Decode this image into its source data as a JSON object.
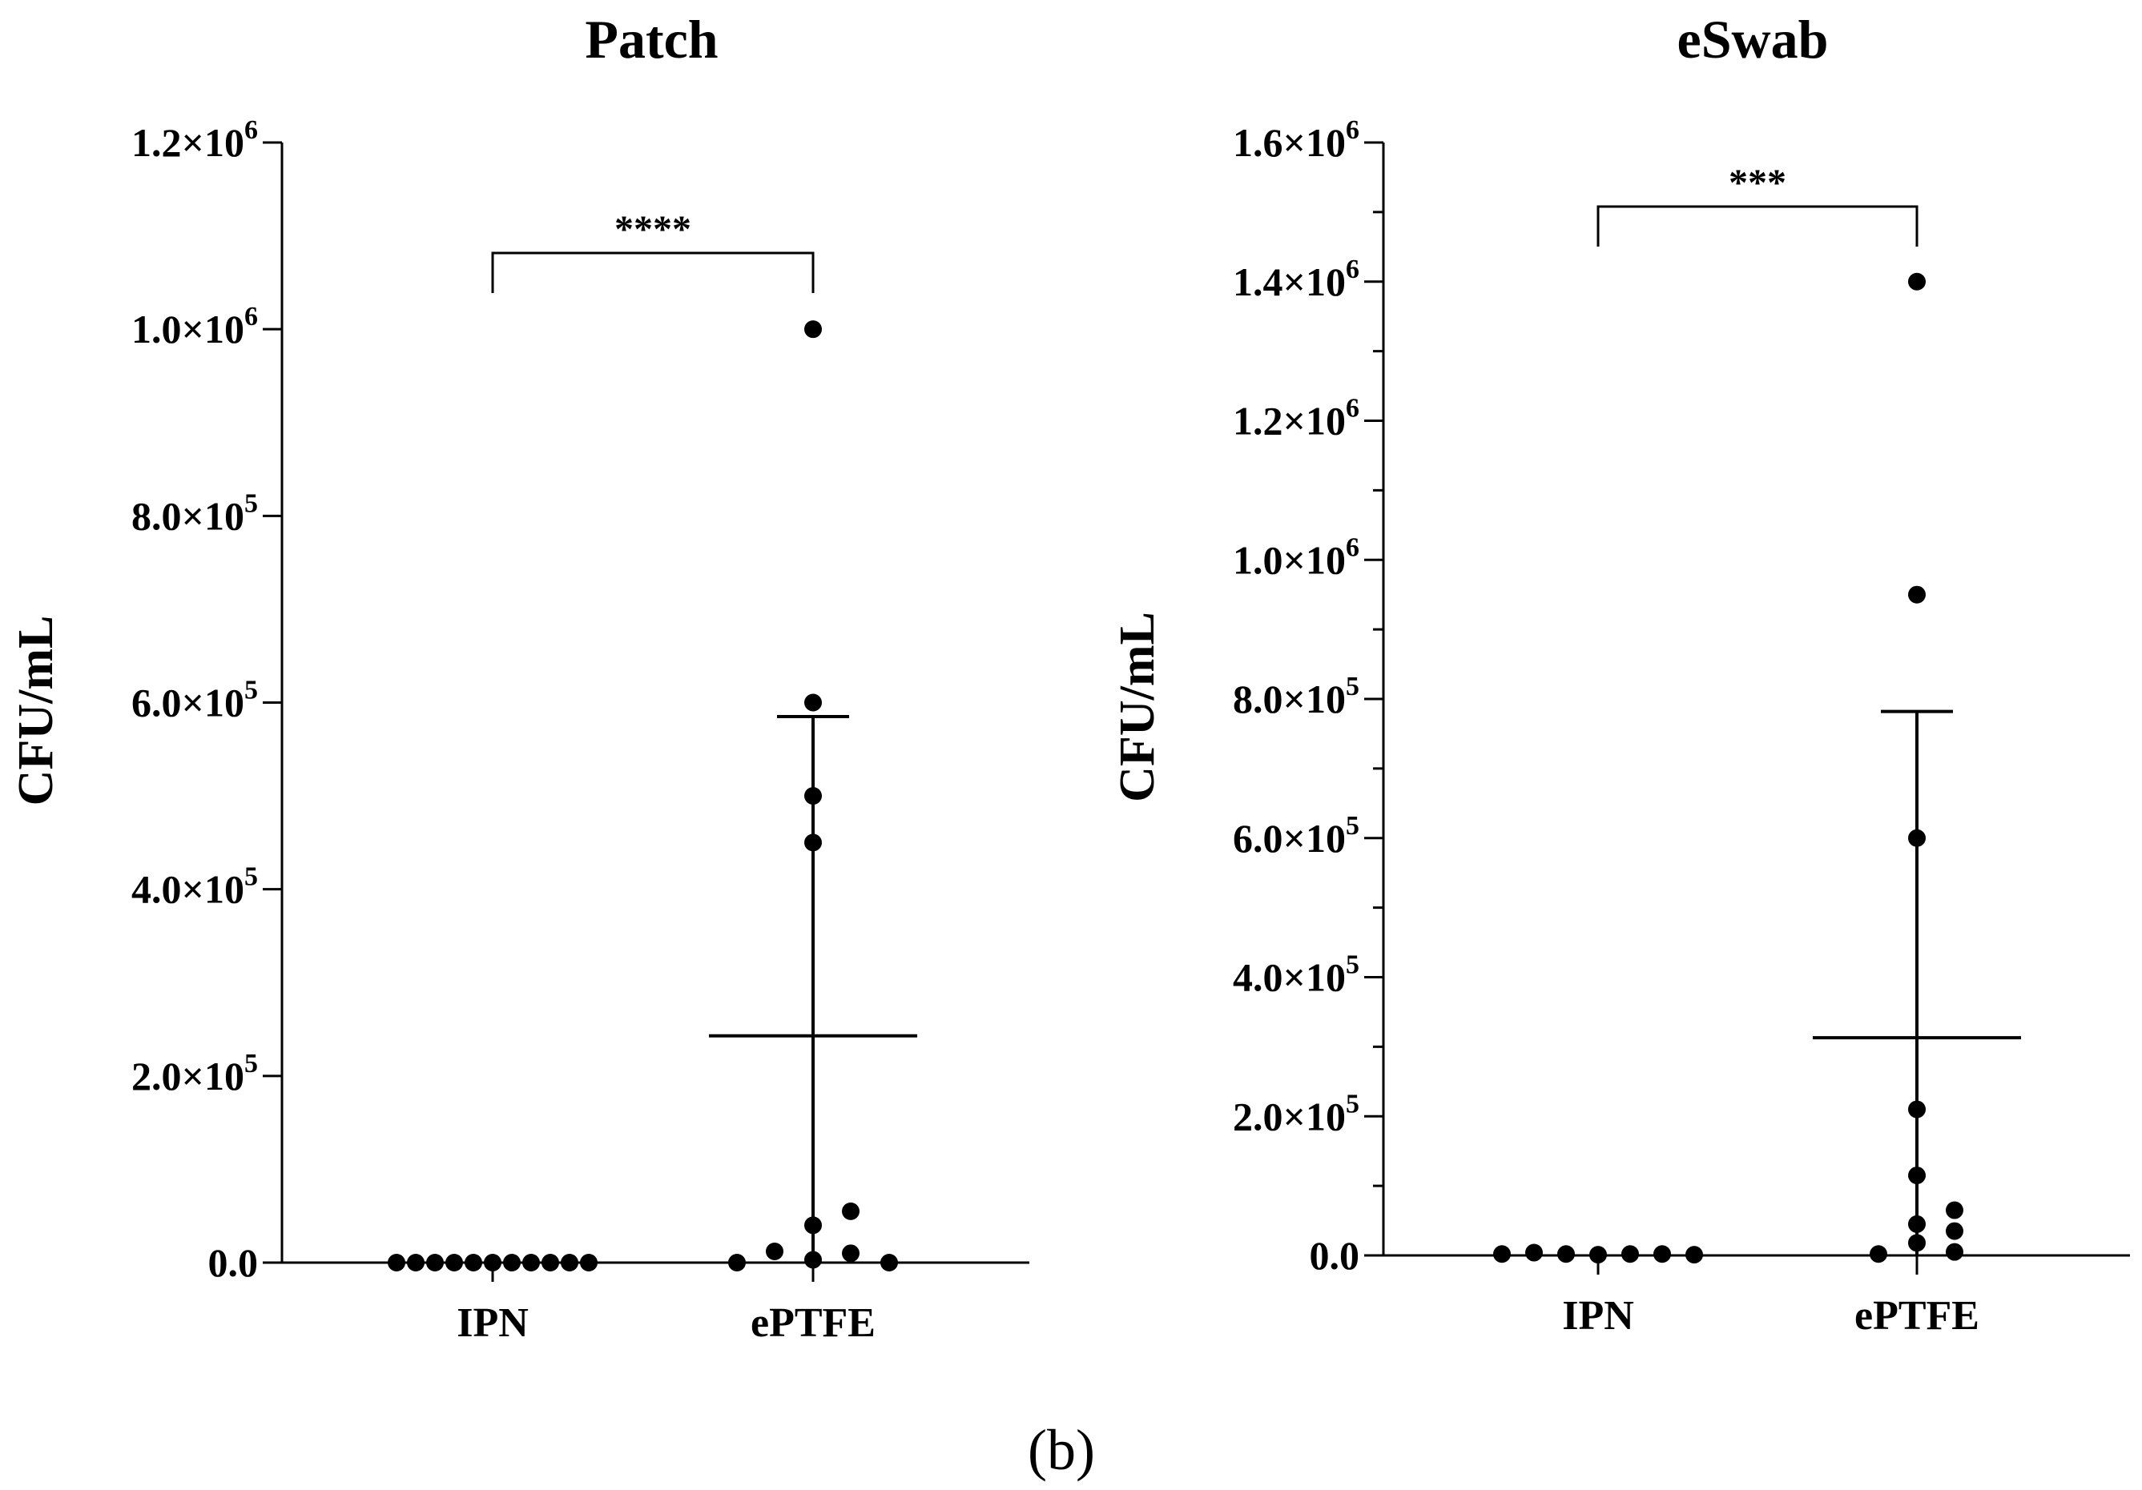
{
  "caption": "(b)",
  "chart_data": [
    {
      "type": "scatter",
      "title": "Patch",
      "ylabel": "CFU/mL",
      "xlabel": "",
      "categories": [
        "IPN",
        "ePTFE"
      ],
      "ylim": [
        0,
        1200000
      ],
      "yticks": [
        {
          "value": 0,
          "label": "0.0"
        },
        {
          "value": 200000,
          "mant": "2.0×10",
          "exp": "5"
        },
        {
          "value": 400000,
          "mant": "4.0×10",
          "exp": "5"
        },
        {
          "value": 600000,
          "mant": "6.0×10",
          "exp": "5"
        },
        {
          "value": 800000,
          "mant": "8.0×10",
          "exp": "5"
        },
        {
          "value": 1000000,
          "mant": "1.0×10",
          "exp": "6"
        },
        {
          "value": 1200000,
          "mant": "1.2×10",
          "exp": "6"
        }
      ],
      "minor_ticks": [],
      "series": [
        {
          "category": "IPN",
          "values": [
            0,
            0,
            0,
            0,
            0,
            0,
            0,
            0,
            0,
            0,
            0
          ]
        },
        {
          "category": "ePTFE",
          "values": [
            1000000,
            600000,
            500000,
            450000,
            40000,
            3000,
            0,
            12000,
            55000,
            10000,
            0
          ],
          "mean": 243000,
          "sd_upper": 585000
        }
      ],
      "significance": {
        "label": "****",
        "between": [
          "IPN",
          "ePTFE"
        ]
      },
      "grid": false
    },
    {
      "type": "scatter",
      "title": "eSwab",
      "ylabel": "CFU/mL",
      "xlabel": "",
      "categories": [
        "IPN",
        "ePTFE"
      ],
      "ylim": [
        0,
        1600000
      ],
      "yticks": [
        {
          "value": 0,
          "label": "0.0"
        },
        {
          "value": 200000,
          "mant": "2.0×10",
          "exp": "5"
        },
        {
          "value": 400000,
          "mant": "4.0×10",
          "exp": "5"
        },
        {
          "value": 600000,
          "mant": "6.0×10",
          "exp": "5"
        },
        {
          "value": 800000,
          "mant": "8.0×10",
          "exp": "5"
        },
        {
          "value": 1000000,
          "mant": "1.0×10",
          "exp": "6"
        },
        {
          "value": 1200000,
          "mant": "1.2×10",
          "exp": "6"
        },
        {
          "value": 1400000,
          "mant": "1.4×10",
          "exp": "6"
        },
        {
          "value": 1600000,
          "mant": "1.6×10",
          "exp": "6"
        }
      ],
      "minor_ticks": [
        100000,
        300000,
        500000,
        700000,
        900000,
        1100000,
        1300000,
        1500000
      ],
      "series": [
        {
          "category": "IPN",
          "values": [
            2000,
            4000,
            2000,
            1000,
            2000,
            2000,
            1000
          ]
        },
        {
          "category": "ePTFE",
          "values": [
            1400000,
            950000,
            600000,
            210000,
            115000,
            45000,
            18000,
            2000,
            65000,
            35000,
            5000
          ],
          "mean": 313000,
          "sd_upper": 782000
        }
      ],
      "significance": {
        "label": "***",
        "between": [
          "IPN",
          "ePTFE"
        ]
      },
      "grid": false
    }
  ]
}
